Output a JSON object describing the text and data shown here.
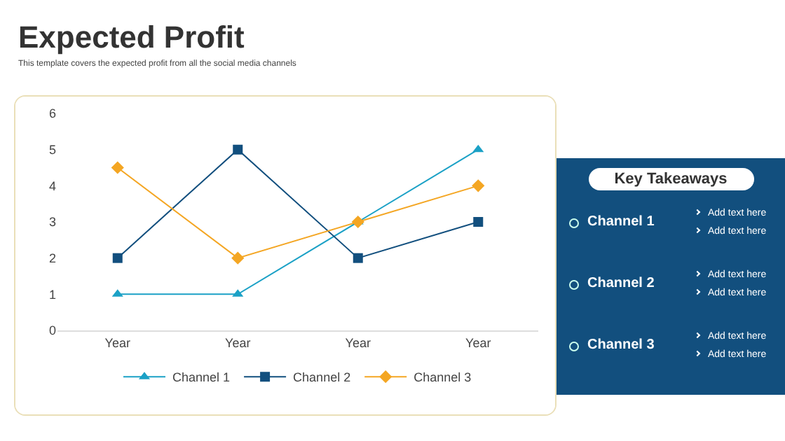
{
  "chart_data": [
    {
      "type": "line",
      "title": "Expected Profit",
      "subtitle": "This template covers the expected profit from all the social media channels",
      "categories": [
        "Year",
        "Year",
        "Year",
        "Year"
      ],
      "series": [
        {
          "name": "Channel 1",
          "color": "#1ba1c6",
          "marker": "triangle",
          "values": [
            1,
            1,
            3,
            5
          ]
        },
        {
          "name": "Channel 2",
          "color": "#124f7e",
          "marker": "square",
          "values": [
            2,
            5,
            2,
            3
          ]
        },
        {
          "name": "Channel 3",
          "color": "#f4a623",
          "marker": "diamond",
          "values": [
            4.5,
            2,
            3,
            4
          ]
        }
      ],
      "ylim": [
        0,
        6
      ],
      "yticks": [
        0,
        1,
        2,
        3,
        4,
        5,
        6
      ],
      "grid": false,
      "legend": "bottom"
    },
    {
      "type": "other",
      "title": "Key Takeaways",
      "categories": [
        "Channel 1",
        "Channel 2",
        "Channel 3"
      ],
      "annotations": [
        "Add text here",
        "Add text here",
        "Add text here",
        "Add text here",
        "Add text here",
        "Add text here"
      ]
    }
  ]
}
